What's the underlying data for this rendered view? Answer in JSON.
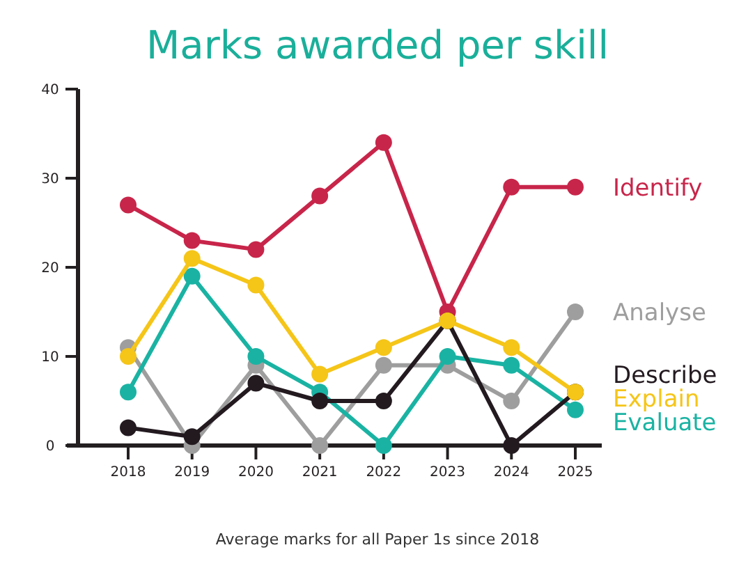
{
  "chart_data": {
    "type": "line",
    "title": "Marks awarded per skill",
    "annotations": [
      "Average marks for all Paper 1s since 2018"
    ],
    "categories": [
      "2018",
      "2019",
      "2020",
      "2021",
      "2022",
      "2023",
      "2024",
      "2025"
    ],
    "series": [
      {
        "name": "Identify",
        "color": "#c8254a",
        "values": [
          27,
          23,
          22,
          28,
          34,
          15,
          29,
          29
        ]
      },
      {
        "name": "Analyse",
        "color": "#9e9e9e",
        "values": [
          11,
          0,
          9,
          0,
          9,
          9,
          5,
          15
        ]
      },
      {
        "name": "Evaluate",
        "color": "#1ab3a3",
        "values": [
          6,
          19,
          10,
          6,
          0,
          10,
          9,
          4
        ]
      },
      {
        "name": "Describe",
        "color": "#231a20",
        "values": [
          2,
          1,
          7,
          5,
          5,
          14,
          0,
          6
        ]
      },
      {
        "name": "Explain",
        "color": "#f5c518",
        "values": [
          10,
          21,
          18,
          8,
          11,
          14,
          11,
          6
        ]
      }
    ],
    "ylim": [
      0,
      40
    ],
    "yticks": [
      0,
      10,
      20,
      30,
      40
    ],
    "marker": "circle"
  }
}
